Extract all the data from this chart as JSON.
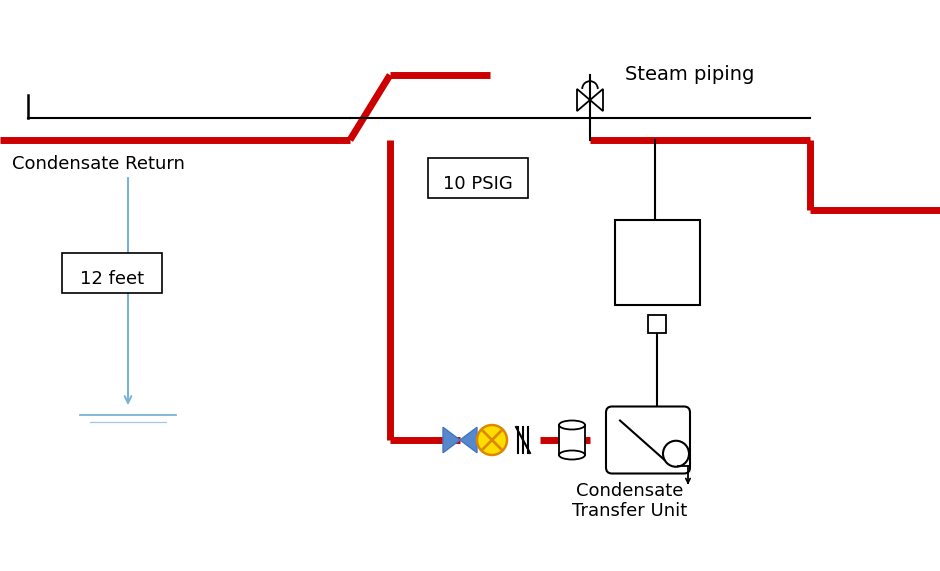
{
  "bg_color": "#ffffff",
  "pipe_color": "#cc0000",
  "pipe_lw": 5,
  "thin_pipe_color": "#000000",
  "thin_pipe_lw": 1.5,
  "text_condensate_return": "Condensate Return",
  "text_12feet": "12 feet",
  "text_10psig": "10 PSIG",
  "text_steam": "Steam piping",
  "text_ctu1": "Condensate",
  "text_ctu2": "Transfer Unit"
}
